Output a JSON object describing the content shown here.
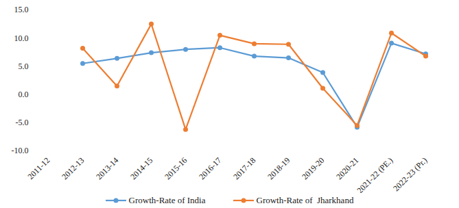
{
  "chart_data": {
    "type": "line",
    "categories": [
      "2011-12",
      "2012-13",
      "2013-14",
      "2014-15",
      "2015-16",
      "2016-17",
      "2017-18",
      "2018-19",
      "2019-20",
      "2020-21",
      "2021-22 (PE.)",
      "2022-23 (Pr.)"
    ],
    "series": [
      {
        "name": "Growth-Rate of India",
        "color": "#5b9bd5",
        "marker": "circle",
        "values": [
          null,
          5.5,
          6.4,
          7.4,
          8.0,
          8.3,
          6.8,
          6.5,
          3.9,
          -5.8,
          9.1,
          7.2
        ]
      },
      {
        "name": "Growth-Rate of  Jharkhand",
        "color": "#ed7d31",
        "marker": "circle",
        "values": [
          null,
          8.2,
          1.5,
          12.5,
          -6.2,
          10.5,
          9.0,
          8.9,
          1.1,
          -5.5,
          10.9,
          6.8
        ]
      }
    ],
    "ylim": [
      -10,
      15
    ],
    "yticks": [
      {
        "value": -10,
        "label": "-10.0"
      },
      {
        "value": -5,
        "label": "-5.0"
      },
      {
        "value": 0,
        "label": "0.0"
      },
      {
        "value": 5,
        "label": "5.0"
      },
      {
        "value": 10,
        "label": "10.0"
      },
      {
        "value": 15,
        "label": "15.0"
      }
    ],
    "grid": false,
    "legend": "bottom"
  }
}
